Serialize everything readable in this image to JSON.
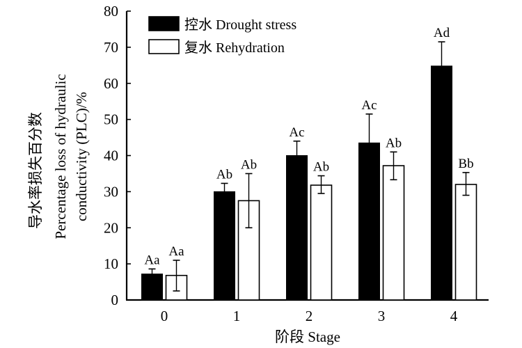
{
  "chart_data": {
    "type": "bar",
    "title": "",
    "xlabel": "阶段 Stage",
    "ylabel_lines": [
      "导水率损失百分数",
      "Percentage loss of hydraulic",
      "conductivity (PLC)/%"
    ],
    "ylabel": "导水率损失百分数 Percentage loss of hydraulic conductivity (PLC)/%",
    "categories": [
      "0",
      "1",
      "2",
      "3",
      "4"
    ],
    "ylim": [
      0,
      80
    ],
    "yticks": [
      0,
      10,
      20,
      30,
      40,
      50,
      60,
      70,
      80
    ],
    "grid": false,
    "legend_position": "upper-left",
    "series": [
      {
        "name": "控水 Drought stress",
        "color": "#000000",
        "fill": "#000000",
        "values": [
          7.2,
          30.0,
          40.0,
          43.5,
          64.8
        ],
        "error_upper": [
          8.6,
          32.3,
          44.0,
          51.5,
          71.5
        ],
        "labels": [
          "Aa",
          "Ab",
          "Ac",
          "Ac",
          "Ad"
        ]
      },
      {
        "name": "复水 Rehydration",
        "color": "#000000",
        "fill": "#ffffff",
        "values": [
          6.8,
          27.5,
          31.8,
          37.2,
          32.0
        ],
        "error_upper": [
          11.0,
          35.0,
          34.4,
          41.0,
          35.3
        ],
        "error_lower": [
          2.5,
          20.0,
          29.5,
          33.3,
          29.0
        ],
        "labels": [
          "Aa",
          "Ab",
          "Ab",
          "Ab",
          "Bb"
        ]
      }
    ]
  },
  "legend": {
    "items": [
      {
        "label": "控水 Drought stress",
        "swatch": "#000000"
      },
      {
        "label": "复水 Rehydration",
        "swatch": "#ffffff"
      }
    ]
  }
}
